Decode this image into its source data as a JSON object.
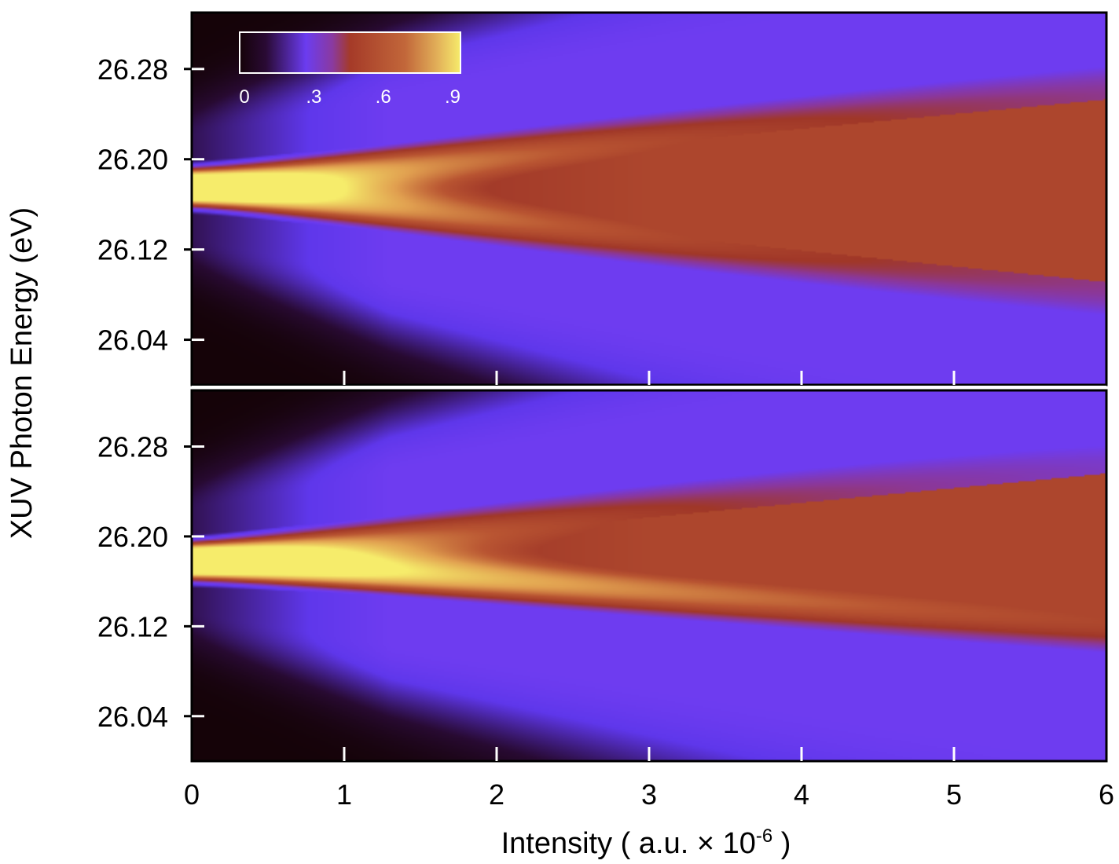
{
  "chart_data": {
    "type": "heatmap",
    "xlabel": "Intensity ( a.u. × 10",
    "xlabel_exponent": "-6",
    "xlabel_close": " )",
    "ylabel": "XUV Photon Energy (eV)",
    "xlim": [
      0,
      6
    ],
    "x_ticks": [
      "0",
      "1",
      "2",
      "3",
      "4",
      "5",
      "6"
    ],
    "ylim": [
      26.0,
      26.33
    ],
    "y_ticks": [
      "26.28",
      "26.20",
      "26.12",
      "26.04"
    ],
    "y_tick_values": [
      26.28,
      26.2,
      26.12,
      26.04
    ],
    "colorbar": {
      "ticks": [
        "0",
        ".3",
        ".6",
        ".9"
      ],
      "tick_values": [
        0,
        0.3,
        0.6,
        0.9
      ],
      "range": [
        0,
        0.9
      ],
      "colors": [
        "#150308",
        "#6b3cf0",
        "#b04a2c",
        "#f6ec6b"
      ]
    },
    "panels": [
      {
        "name": "top",
        "center_energy": 26.175,
        "upper_slope": 0.013,
        "lower_slope": -0.014,
        "upper_width_growth": 1.0,
        "lower_width_growth": 1.0
      },
      {
        "name": "bottom",
        "center_energy": 26.178,
        "upper_slope": 0.013,
        "lower_slope": -0.009,
        "upper_width_growth": 1.3,
        "lower_width_growth": 0.55
      }
    ]
  }
}
